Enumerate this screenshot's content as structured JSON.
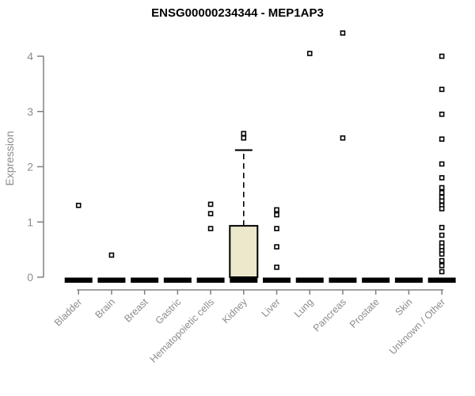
{
  "chart_data": {
    "type": "boxplot",
    "title": "ENSG00000234344 - MEP1AP3",
    "ylabel": "Expression",
    "xlabel": "",
    "ylim": [
      0,
      4
    ],
    "yticks": [
      0,
      1,
      2,
      3,
      4
    ],
    "grid": false,
    "legend": "none",
    "categories": [
      "Bladder",
      "Brain",
      "Breast",
      "Gastric",
      "Hematopoietic cells",
      "Kidney",
      "Liver",
      "Lung",
      "Pancreas",
      "Prostate",
      "Skin",
      "Unknown / Other"
    ],
    "series": [
      {
        "category": "Bladder",
        "q1": 0,
        "median": 0,
        "q3": 0,
        "whisker_low": 0,
        "whisker_high": 0,
        "outliers": [
          1.3
        ]
      },
      {
        "category": "Brain",
        "q1": 0,
        "median": 0,
        "q3": 0,
        "whisker_low": 0,
        "whisker_high": 0,
        "outliers": [
          0.4
        ]
      },
      {
        "category": "Breast",
        "q1": 0,
        "median": 0,
        "q3": 0,
        "whisker_low": 0,
        "whisker_high": 0,
        "outliers": []
      },
      {
        "category": "Gastric",
        "q1": 0,
        "median": 0,
        "q3": 0,
        "whisker_low": 0,
        "whisker_high": 0,
        "outliers": []
      },
      {
        "category": "Hematopoietic cells",
        "q1": 0,
        "median": 0,
        "q3": 0,
        "whisker_low": 0,
        "whisker_high": 0,
        "outliers": [
          1.32,
          1.15,
          0.88
        ]
      },
      {
        "category": "Kidney",
        "q1": 0,
        "median": 0,
        "q3": 0.93,
        "whisker_low": 0,
        "whisker_high": 2.3,
        "outliers": [
          2.6,
          2.52
        ]
      },
      {
        "category": "Liver",
        "q1": 0,
        "median": 0,
        "q3": 0,
        "whisker_low": 0,
        "whisker_high": 0,
        "outliers": [
          1.22,
          1.13,
          0.88,
          0.55,
          0.18
        ]
      },
      {
        "category": "Lung",
        "q1": 0,
        "median": 0,
        "q3": 0,
        "whisker_low": 0,
        "whisker_high": 0,
        "outliers": [
          4.05
        ]
      },
      {
        "category": "Pancreas",
        "q1": 0,
        "median": 0,
        "q3": 0,
        "whisker_low": 0,
        "whisker_high": 0,
        "outliers": [
          4.42,
          2.52
        ]
      },
      {
        "category": "Prostate",
        "q1": 0,
        "median": 0,
        "q3": 0,
        "whisker_low": 0,
        "whisker_high": 0,
        "outliers": []
      },
      {
        "category": "Skin",
        "q1": 0,
        "median": 0,
        "q3": 0,
        "whisker_low": 0,
        "whisker_high": 0,
        "outliers": []
      },
      {
        "category": "Unknown / Other",
        "q1": 0,
        "median": 0,
        "q3": 0,
        "whisker_low": 0,
        "whisker_high": 0,
        "outliers": [
          4.0,
          3.4,
          2.95,
          2.5,
          2.05,
          1.8,
          1.62,
          1.53,
          1.45,
          1.38,
          1.3,
          1.24,
          0.9,
          0.76,
          0.62,
          0.55,
          0.48,
          0.42,
          0.3,
          0.21,
          0.1
        ]
      }
    ],
    "colors": {
      "box_fill": "#ECE8CC",
      "box_stroke": "#000000",
      "median": "#000000",
      "outlier_stroke": "#000000",
      "outlier_fill": "#ffffff",
      "axis": "#808080",
      "tick_label": "#8c8c8c",
      "title": "#000000",
      "background": "#ffffff"
    }
  }
}
